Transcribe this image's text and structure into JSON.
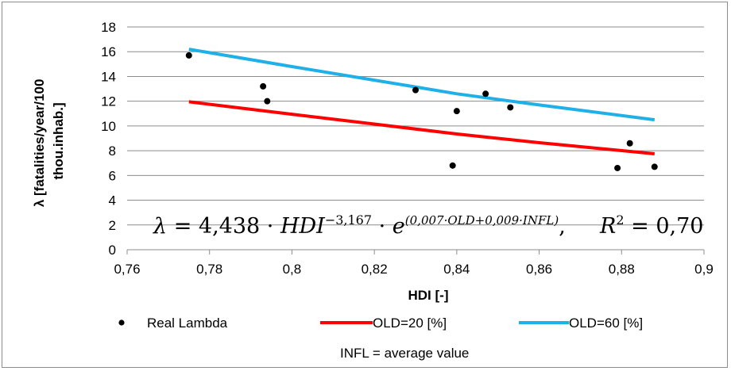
{
  "chart_data": {
    "type": "scatter",
    "title": "",
    "xlabel": "HDI [-]",
    "ylabel_line1": "λ [fatalities/year/100",
    "ylabel_line2": "thou.inhab.]",
    "xlim": [
      0.76,
      0.9
    ],
    "ylim": [
      0,
      18
    ],
    "x_ticks": [
      0.76,
      0.78,
      0.8,
      0.82,
      0.84,
      0.86,
      0.88,
      0.9
    ],
    "x_tick_labels": [
      "0,76",
      "0,78",
      "0,8",
      "0,82",
      "0,84",
      "0,86",
      "0,88",
      "0,9"
    ],
    "y_ticks": [
      0,
      2,
      4,
      6,
      8,
      10,
      12,
      14,
      16,
      18
    ],
    "y_tick_labels": [
      "0",
      "2",
      "4",
      "6",
      "8",
      "10",
      "12",
      "14",
      "16",
      "18"
    ],
    "grid": "horizontal",
    "series": [
      {
        "name": "Real Lambda",
        "kind": "scatter",
        "color": "#000000",
        "x": [
          0.775,
          0.793,
          0.794,
          0.83,
          0.839,
          0.84,
          0.847,
          0.853,
          0.879,
          0.882,
          0.888
        ],
        "y": [
          15.7,
          13.2,
          12.0,
          12.9,
          6.8,
          11.2,
          12.6,
          11.5,
          6.6,
          8.6,
          6.7
        ]
      },
      {
        "name": "OLD=20 [%]",
        "kind": "line",
        "color": "#ff0000",
        "x": [
          0.775,
          0.8,
          0.82,
          0.84,
          0.86,
          0.888
        ],
        "y": [
          11.95,
          10.95,
          10.15,
          9.35,
          8.65,
          7.75
        ]
      },
      {
        "name": "OLD=60 [%]",
        "kind": "line",
        "color": "#1fb0e8",
        "x": [
          0.775,
          0.8,
          0.82,
          0.84,
          0.86,
          0.888
        ],
        "y": [
          16.2,
          14.8,
          13.7,
          12.6,
          11.7,
          10.5
        ]
      }
    ],
    "legend_position": "bottom",
    "annotation": {
      "equation_lambda": "λ",
      "equation_equals": " = 4,438 · ",
      "equation_hdi": "HDI",
      "equation_hdi_exp": "−3,167",
      "equation_dot": " · ",
      "equation_e": "e",
      "equation_e_exp": "(0,007·OLD+0,009·INFL)",
      "equation_comma": ",",
      "r2_r": "R",
      "r2_exp": "2",
      "r2_value": " = 0,70"
    },
    "note": "INFL = average  value"
  }
}
